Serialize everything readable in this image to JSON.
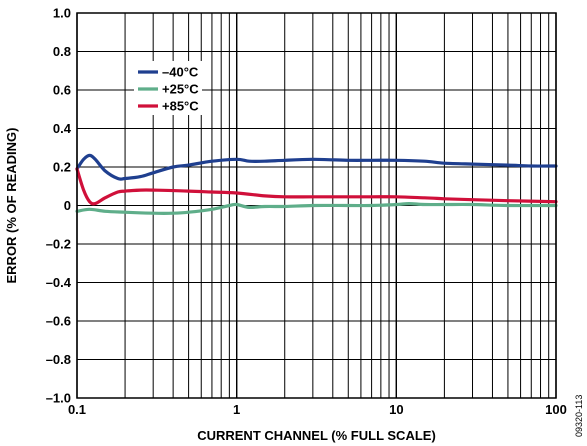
{
  "chart_data": {
    "type": "line",
    "xscale": "log",
    "xlabel": "CURRENT CHANNEL (% FULL SCALE)",
    "ylabel": "ERROR (% OF READING)",
    "xlim": [
      0.1,
      100
    ],
    "ylim": [
      -1.0,
      1.0
    ],
    "x_ticks": [
      "0.1",
      "1",
      "10",
      "100"
    ],
    "y_ticks": [
      "1.0",
      "0.8",
      "0.6",
      "0.4",
      "0.2",
      "0",
      "–0.2",
      "–0.4",
      "–0.6",
      "–0.8",
      "–1.0"
    ],
    "grid": true,
    "legend_position": "top-left",
    "figure_id": "09320-113",
    "series": [
      {
        "name": "–40°C",
        "color": "#1f3f8f",
        "x": [
          0.1,
          0.11,
          0.12,
          0.13,
          0.15,
          0.18,
          0.2,
          0.25,
          0.3,
          0.4,
          0.5,
          0.7,
          1.0,
          1.2,
          1.5,
          2,
          3,
          5,
          7,
          10,
          15,
          20,
          30,
          50,
          70,
          100
        ],
        "y": [
          0.19,
          0.24,
          0.26,
          0.24,
          0.18,
          0.14,
          0.14,
          0.15,
          0.17,
          0.2,
          0.21,
          0.23,
          0.24,
          0.23,
          0.23,
          0.235,
          0.24,
          0.235,
          0.235,
          0.235,
          0.23,
          0.22,
          0.215,
          0.21,
          0.205,
          0.205
        ]
      },
      {
        "name": "+25°C",
        "color": "#5fae8a",
        "x": [
          0.1,
          0.12,
          0.15,
          0.2,
          0.3,
          0.4,
          0.5,
          0.7,
          0.9,
          1.0,
          1.2,
          1.5,
          2,
          3,
          5,
          7,
          10,
          12,
          15,
          20,
          30,
          50,
          100
        ],
        "y": [
          -0.03,
          -0.02,
          -0.03,
          -0.035,
          -0.04,
          -0.04,
          -0.035,
          -0.02,
          0.0,
          0.005,
          -0.01,
          -0.005,
          -0.005,
          0.0,
          0.0,
          0.0,
          0.005,
          0.01,
          0.005,
          0.005,
          0.005,
          0.0,
          0.0
        ]
      },
      {
        "name": "+85°C",
        "color": "#d0103a",
        "x": [
          0.1,
          0.11,
          0.12,
          0.13,
          0.15,
          0.18,
          0.2,
          0.25,
          0.3,
          0.5,
          0.7,
          1.0,
          1.5,
          2,
          3,
          5,
          7,
          10,
          15,
          20,
          30,
          50,
          100
        ],
        "y": [
          0.19,
          0.08,
          0.02,
          0.01,
          0.04,
          0.07,
          0.075,
          0.08,
          0.08,
          0.075,
          0.07,
          0.065,
          0.05,
          0.045,
          0.045,
          0.045,
          0.045,
          0.045,
          0.04,
          0.035,
          0.03,
          0.025,
          0.02
        ]
      }
    ]
  }
}
